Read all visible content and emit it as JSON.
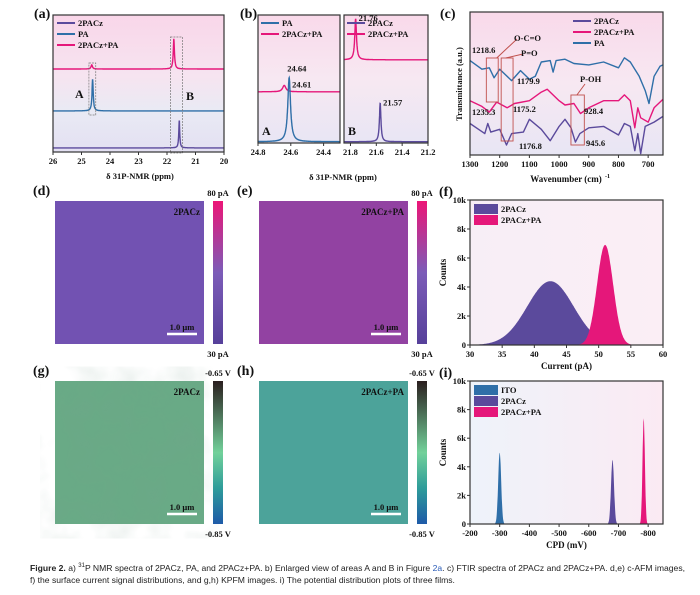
{
  "colors": {
    "twopacz": "#5b4a9c",
    "pa": "#2f6fa8",
    "mix": "#e5177a"
  },
  "panels": {
    "a": "(a)",
    "b": "(b)",
    "c": "(c)",
    "d": "(d)",
    "e": "(e)",
    "f": "(f)",
    "g": "(g)",
    "h": "(h)",
    "i": "(i)"
  },
  "chart_data": [
    {
      "id": "a",
      "type": "line",
      "title": "",
      "xlabel": "δ 31P-NMR (ppm)",
      "ylabel": "",
      "xlim": [
        26,
        20
      ],
      "ylim": [
        0,
        10
      ],
      "xticks": [
        26,
        25,
        24,
        23,
        22,
        21,
        20
      ],
      "legend": [
        "2PACz",
        "PA",
        "2PACz+PA"
      ],
      "legend_position": "top-left",
      "box_labels": [
        "A",
        "B"
      ],
      "series": [
        {
          "name": "2PACz+PA",
          "baseline": 6.06,
          "peaks": [
            {
              "center": 21.76,
              "height": 2.2,
              "width": 0.025
            },
            {
              "center": 24.64,
              "height": 0.3,
              "width": 0.03
            }
          ]
        },
        {
          "name": "PA",
          "baseline": 3.0,
          "peaks": [
            {
              "center": 24.61,
              "height": 2.3,
              "width": 0.025
            }
          ]
        },
        {
          "name": "2PACz",
          "baseline": 0.3,
          "peaks": [
            {
              "center": 21.57,
              "height": 2.0,
              "width": 0.02
            }
          ]
        }
      ]
    },
    {
      "id": "b",
      "type": "line",
      "xlabel": "δ 31P-NMR (ppm)",
      "ylim": [
        0,
        10
      ],
      "left": {
        "xlim": [
          24.8,
          24.3
        ],
        "xticks": [
          24.8,
          24.6,
          24.4
        ],
        "legend": [
          "PA",
          "2PACz+PA"
        ],
        "region": "A",
        "series": [
          {
            "name": "2PACz+PA",
            "baseline": 4.0,
            "peaks": [
              {
                "center": 24.64,
                "height": 0.5,
                "width": 0.012
              }
            ],
            "label": "24.64"
          },
          {
            "name": "PA",
            "baseline": 0.1,
            "peaks": [
              {
                "center": 24.61,
                "height": 5.0,
                "width": 0.01
              }
            ],
            "label": "24.61"
          }
        ]
      },
      "right": {
        "xlim": [
          21.85,
          21.2
        ],
        "xticks": [
          21.8,
          21.6,
          21.4,
          21.2
        ],
        "legend": [
          "2PACz",
          "2PACz+PA"
        ],
        "region": "B",
        "series": [
          {
            "name": "2PACz+PA",
            "baseline": 6.5,
            "peaks": [
              {
                "center": 21.76,
                "height": 3.2,
                "width": 0.008
              }
            ],
            "label": "21.76"
          },
          {
            "name": "2PACz",
            "baseline": 0.1,
            "peaks": [
              {
                "center": 21.57,
                "height": 3.0,
                "width": 0.007
              }
            ],
            "label": "21.57"
          }
        ]
      }
    },
    {
      "id": "c",
      "type": "line",
      "xlabel": "Wavenumber (cm-1)",
      "ylabel": "Transmittance (a.u.)",
      "xlim": [
        1300,
        650
      ],
      "ylim": [
        0,
        10
      ],
      "xticks": [
        1300,
        1200,
        1100,
        1000,
        900,
        800,
        700
      ],
      "legend": [
        "2PACz",
        "2PACz+PA",
        "PA"
      ],
      "legend_position": "top-right",
      "annotations": [
        "1218.6",
        "O-C=O",
        "P=O",
        "1179.9",
        "1235.3",
        "1175.2",
        "1176.8",
        "P-OH",
        "928.4",
        "945.6"
      ],
      "series": [
        {
          "name": "PA",
          "points": [
            [
              1300,
              6.6
            ],
            [
              1260,
              6.0
            ],
            [
              1235,
              6.1
            ],
            [
              1219,
              5.4
            ],
            [
              1200,
              6.0
            ],
            [
              1180,
              5.6
            ],
            [
              1160,
              5.2
            ],
            [
              1130,
              5.9
            ],
            [
              1100,
              5.3
            ],
            [
              1080,
              5.5
            ],
            [
              1060,
              6.5
            ],
            [
              1030,
              6.6
            ],
            [
              1020,
              5.8
            ],
            [
              1010,
              6.6
            ],
            [
              980,
              6.7
            ],
            [
              950,
              6.4
            ],
            [
              900,
              6.3
            ],
            [
              850,
              6.5
            ],
            [
              800,
              6.1
            ],
            [
              780,
              6.8
            ],
            [
              760,
              6.5
            ],
            [
              730,
              5.5
            ],
            [
              710,
              4.5
            ],
            [
              697,
              3.6
            ],
            [
              680,
              5.5
            ],
            [
              660,
              6.2
            ],
            [
              650,
              6.3
            ]
          ]
        },
        {
          "name": "2PACz+PA",
          "points": [
            [
              1300,
              3.8
            ],
            [
              1260,
              3.4
            ],
            [
              1235,
              3.0
            ],
            [
              1210,
              3.7
            ],
            [
              1175,
              3.3
            ],
            [
              1150,
              3.6
            ],
            [
              1100,
              3.8
            ],
            [
              1060,
              4.4
            ],
            [
              1040,
              4.6
            ],
            [
              1000,
              3.8
            ],
            [
              980,
              3.5
            ],
            [
              950,
              3.6
            ],
            [
              928,
              2.9
            ],
            [
              900,
              3.3
            ],
            [
              850,
              3.8
            ],
            [
              800,
              3.8
            ],
            [
              780,
              4.2
            ],
            [
              760,
              3.8
            ],
            [
              745,
              1.9
            ],
            [
              735,
              3.3
            ],
            [
              725,
              2.6
            ],
            [
              700,
              2.3
            ],
            [
              680,
              3.3
            ],
            [
              650,
              3.9
            ]
          ]
        },
        {
          "name": "2PACz",
          "points": [
            [
              1300,
              2.2
            ],
            [
              1250,
              1.5
            ],
            [
              1240,
              2.2
            ],
            [
              1230,
              1.6
            ],
            [
              1200,
              1.8
            ],
            [
              1177,
              0.7
            ],
            [
              1160,
              1.5
            ],
            [
              1120,
              1.6
            ],
            [
              1100,
              2.5
            ],
            [
              1060,
              1.8
            ],
            [
              1030,
              1.0
            ],
            [
              1000,
              2.0
            ],
            [
              980,
              2.5
            ],
            [
              960,
              1.9
            ],
            [
              945,
              0.9
            ],
            [
              930,
              1.5
            ],
            [
              900,
              1.9
            ],
            [
              850,
              2.0
            ],
            [
              800,
              1.4
            ],
            [
              780,
              2.2
            ],
            [
              760,
              2.0
            ],
            [
              745,
              0.3
            ],
            [
              735,
              1.5
            ],
            [
              725,
              0.1
            ],
            [
              710,
              2.0
            ],
            [
              680,
              2.3
            ],
            [
              650,
              2.7
            ]
          ]
        }
      ]
    },
    {
      "id": "f",
      "type": "area",
      "xlabel": "Current (pA)",
      "ylabel": "Counts",
      "xlim": [
        30,
        60
      ],
      "ylim": [
        0,
        10000
      ],
      "xticks": [
        30,
        35,
        40,
        45,
        50,
        55,
        60
      ],
      "yticks": [
        "0",
        "2k",
        "4k",
        "6k",
        "8k",
        "10k"
      ],
      "legend": [
        "2PACz",
        "2PACz+PA"
      ],
      "legend_position": "top-left",
      "series": [
        {
          "name": "2PACz",
          "center": 42.5,
          "peak": 4400,
          "sigma": 3.6
        },
        {
          "name": "2PACz+PA",
          "center": 51.0,
          "peak": 6900,
          "sigma": 1.25
        }
      ]
    },
    {
      "id": "i",
      "type": "area",
      "xlabel": "CPD (mV)",
      "ylabel": "Counts",
      "xlim": [
        -200,
        -850
      ],
      "ylim": [
        0,
        10000
      ],
      "xticks": [
        -200,
        -300,
        -400,
        -500,
        -600,
        -700,
        -800
      ],
      "yticks": [
        "0",
        "2k",
        "4k",
        "6k",
        "8k",
        "10k"
      ],
      "legend": [
        "ITO",
        "2PACz",
        "2PACz+PA"
      ],
      "legend_position": "top-left",
      "series": [
        {
          "name": "ITO",
          "center": -300,
          "peak": 5000,
          "sigma": 5
        },
        {
          "name": "2PACz",
          "center": -680,
          "peak": 4500,
          "sigma": 5
        },
        {
          "name": "2PACz+PA",
          "center": -785,
          "peak": 7400,
          "sigma": 4
        }
      ]
    }
  ],
  "images": {
    "d": {
      "label": "2PACz",
      "scale": "1.0 μm",
      "cb_max": "80 pA",
      "cb_min": "30 pA"
    },
    "e": {
      "label": "2PACz+PA",
      "scale": "1.0 μm",
      "cb_max": "80 pA",
      "cb_min": "30 pA"
    },
    "g": {
      "label": "2PACz",
      "scale": "1.0 μm",
      "cb_max": "-0.65 V",
      "cb_min": "-0.85 V"
    },
    "h": {
      "label": "2PACz+PA",
      "scale": "1.0 μm",
      "cb_max": "-0.65 V",
      "cb_min": "-0.85 V"
    }
  },
  "caption": {
    "figure": "Figure 2.",
    "part1": " a) ",
    "sup": "31",
    "part2": "P NMR spectra of 2PACz, PA, and 2PACz+PA. b) Enlarged view of areas A and B in Figure ",
    "link": "2a",
    "part3": ". c) FTIR spectra of 2PACz and 2PACz+PA. d,e) c-AFM images, f) the surface current signal distributions, and g,h) KPFM images. i) The potential distribution plots of three films."
  }
}
